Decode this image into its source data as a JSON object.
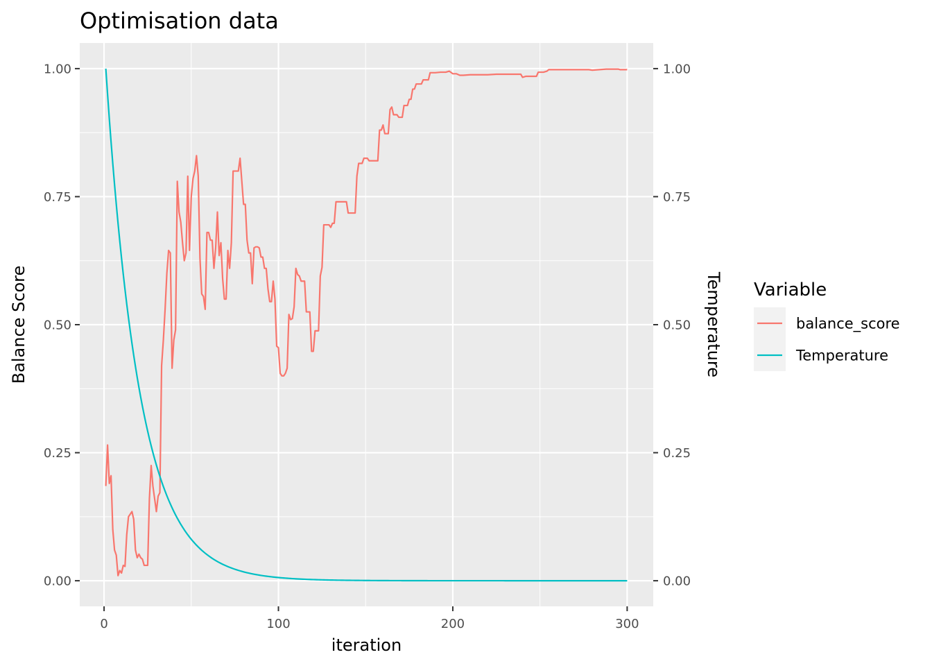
{
  "chart_data": {
    "type": "line",
    "title": "Optimisation data",
    "xlabel": "iteration",
    "ylabel": "Balance Score",
    "y2label": "Temperature",
    "xlim": [
      -13.95,
      314.95
    ],
    "ylim": [
      -0.05,
      1.05
    ],
    "x_ticks": [
      0,
      100,
      200,
      300
    ],
    "y_ticks": [
      0.0,
      0.25,
      0.5,
      0.75,
      1.0
    ],
    "y2_ticks": [
      0.0,
      0.25,
      0.5,
      0.75,
      1.0
    ],
    "grid": true,
    "legend_position": "right",
    "legend_title": "Variable",
    "series": [
      {
        "name": "balance_score",
        "color": "#F8766D",
        "points": [
          [
            1,
            0.185
          ],
          [
            2,
            0.265
          ],
          [
            3,
            0.19
          ],
          [
            4,
            0.205
          ],
          [
            5,
            0.1
          ],
          [
            6,
            0.06
          ],
          [
            7,
            0.05
          ],
          [
            8,
            0.01
          ],
          [
            9,
            0.02
          ],
          [
            10,
            0.015
          ],
          [
            11,
            0.03
          ],
          [
            12,
            0.028
          ],
          [
            13,
            0.09
          ],
          [
            14,
            0.125
          ],
          [
            15,
            0.13
          ],
          [
            16,
            0.135
          ],
          [
            17,
            0.12
          ],
          [
            18,
            0.06
          ],
          [
            19,
            0.045
          ],
          [
            20,
            0.052
          ],
          [
            21,
            0.045
          ],
          [
            22,
            0.042
          ],
          [
            23,
            0.03
          ],
          [
            24,
            0.03
          ],
          [
            25,
            0.03
          ],
          [
            26,
            0.16
          ],
          [
            27,
            0.225
          ],
          [
            28,
            0.185
          ],
          [
            29,
            0.16
          ],
          [
            30,
            0.135
          ],
          [
            31,
            0.165
          ],
          [
            32,
            0.172
          ],
          [
            33,
            0.42
          ],
          [
            34,
            0.47
          ],
          [
            35,
            0.53
          ],
          [
            36,
            0.6
          ],
          [
            37,
            0.645
          ],
          [
            38,
            0.64
          ],
          [
            39,
            0.415
          ],
          [
            40,
            0.47
          ],
          [
            41,
            0.49
          ],
          [
            42,
            0.78
          ],
          [
            43,
            0.72
          ],
          [
            44,
            0.7
          ],
          [
            45,
            0.66
          ],
          [
            46,
            0.625
          ],
          [
            47,
            0.64
          ],
          [
            48,
            0.79
          ],
          [
            49,
            0.645
          ],
          [
            50,
            0.75
          ],
          [
            51,
            0.785
          ],
          [
            52,
            0.8
          ],
          [
            53,
            0.83
          ],
          [
            54,
            0.79
          ],
          [
            55,
            0.63
          ],
          [
            56,
            0.56
          ],
          [
            57,
            0.555
          ],
          [
            58,
            0.53
          ],
          [
            59,
            0.68
          ],
          [
            60,
            0.68
          ],
          [
            61,
            0.665
          ],
          [
            62,
            0.665
          ],
          [
            63,
            0.61
          ],
          [
            64,
            0.65
          ],
          [
            65,
            0.72
          ],
          [
            66,
            0.635
          ],
          [
            67,
            0.66
          ],
          [
            68,
            0.59
          ],
          [
            69,
            0.55
          ],
          [
            70,
            0.55
          ],
          [
            71,
            0.645
          ],
          [
            72,
            0.61
          ],
          [
            73,
            0.66
          ],
          [
            74,
            0.8
          ],
          [
            75,
            0.8
          ],
          [
            76,
            0.8
          ],
          [
            77,
            0.8
          ],
          [
            78,
            0.825
          ],
          [
            79,
            0.78
          ],
          [
            80,
            0.735
          ],
          [
            81,
            0.735
          ],
          [
            82,
            0.665
          ],
          [
            83,
            0.64
          ],
          [
            84,
            0.64
          ],
          [
            85,
            0.58
          ],
          [
            86,
            0.65
          ],
          [
            87,
            0.652
          ],
          [
            88,
            0.652
          ],
          [
            89,
            0.65
          ],
          [
            90,
            0.632
          ],
          [
            91,
            0.632
          ],
          [
            92,
            0.61
          ],
          [
            93,
            0.61
          ],
          [
            94,
            0.57
          ],
          [
            95,
            0.545
          ],
          [
            96,
            0.545
          ],
          [
            97,
            0.585
          ],
          [
            98,
            0.55
          ],
          [
            99,
            0.458
          ],
          [
            100,
            0.455
          ],
          [
            101,
            0.405
          ],
          [
            102,
            0.4
          ],
          [
            103,
            0.4
          ],
          [
            104,
            0.405
          ],
          [
            105,
            0.415
          ],
          [
            106,
            0.52
          ],
          [
            107,
            0.51
          ],
          [
            108,
            0.512
          ],
          [
            109,
            0.535
          ],
          [
            110,
            0.61
          ],
          [
            111,
            0.598
          ],
          [
            112,
            0.595
          ],
          [
            113,
            0.585
          ],
          [
            114,
            0.585
          ],
          [
            115,
            0.585
          ],
          [
            116,
            0.525
          ],
          [
            117,
            0.525
          ],
          [
            118,
            0.525
          ],
          [
            119,
            0.448
          ],
          [
            120,
            0.448
          ],
          [
            121,
            0.488
          ],
          [
            122,
            0.488
          ],
          [
            123,
            0.488
          ],
          [
            124,
            0.595
          ],
          [
            125,
            0.612
          ],
          [
            126,
            0.695
          ],
          [
            127,
            0.695
          ],
          [
            128,
            0.695
          ],
          [
            129,
            0.695
          ],
          [
            130,
            0.69
          ],
          [
            131,
            0.698
          ],
          [
            132,
            0.698
          ],
          [
            133,
            0.74
          ],
          [
            134,
            0.74
          ],
          [
            135,
            0.74
          ],
          [
            136,
            0.74
          ],
          [
            137,
            0.74
          ],
          [
            138,
            0.74
          ],
          [
            139,
            0.74
          ],
          [
            140,
            0.718
          ],
          [
            141,
            0.718
          ],
          [
            142,
            0.718
          ],
          [
            143,
            0.718
          ],
          [
            144,
            0.718
          ],
          [
            145,
            0.79
          ],
          [
            146,
            0.815
          ],
          [
            147,
            0.815
          ],
          [
            148,
            0.815
          ],
          [
            149,
            0.825
          ],
          [
            150,
            0.825
          ],
          [
            151,
            0.825
          ],
          [
            152,
            0.82
          ],
          [
            153,
            0.82
          ],
          [
            154,
            0.82
          ],
          [
            155,
            0.82
          ],
          [
            156,
            0.82
          ],
          [
            157,
            0.82
          ],
          [
            158,
            0.88
          ],
          [
            159,
            0.88
          ],
          [
            160,
            0.89
          ],
          [
            161,
            0.873
          ],
          [
            162,
            0.873
          ],
          [
            163,
            0.873
          ],
          [
            164,
            0.92
          ],
          [
            165,
            0.925
          ],
          [
            166,
            0.91
          ],
          [
            167,
            0.91
          ],
          [
            168,
            0.91
          ],
          [
            169,
            0.905
          ],
          [
            170,
            0.905
          ],
          [
            171,
            0.905
          ],
          [
            172,
            0.928
          ],
          [
            173,
            0.928
          ],
          [
            174,
            0.928
          ],
          [
            175,
            0.94
          ],
          [
            176,
            0.94
          ],
          [
            177,
            0.96
          ],
          [
            178,
            0.96
          ],
          [
            179,
            0.97
          ],
          [
            180,
            0.97
          ],
          [
            181,
            0.97
          ],
          [
            182,
            0.97
          ],
          [
            183,
            0.978
          ],
          [
            184,
            0.978
          ],
          [
            185,
            0.978
          ],
          [
            186,
            0.978
          ],
          [
            187,
            0.992
          ],
          [
            188,
            0.992
          ],
          [
            189,
            0.992
          ],
          [
            190,
            0.992
          ],
          [
            193,
            0.993
          ],
          [
            196,
            0.993
          ],
          [
            198,
            0.995
          ],
          [
            200,
            0.99
          ],
          [
            202,
            0.99
          ],
          [
            204,
            0.987
          ],
          [
            206,
            0.987
          ],
          [
            210,
            0.988
          ],
          [
            215,
            0.988
          ],
          [
            220,
            0.988
          ],
          [
            225,
            0.989
          ],
          [
            230,
            0.989
          ],
          [
            235,
            0.989
          ],
          [
            239,
            0.989
          ],
          [
            240,
            0.983
          ],
          [
            242,
            0.985
          ],
          [
            246,
            0.985
          ],
          [
            248,
            0.985
          ],
          [
            249,
            0.993
          ],
          [
            252,
            0.993
          ],
          [
            254,
            0.995
          ],
          [
            255,
            0.998
          ],
          [
            258,
            0.998
          ],
          [
            262,
            0.998
          ],
          [
            270,
            0.998
          ],
          [
            278,
            0.998
          ],
          [
            280,
            0.997
          ],
          [
            284,
            0.998
          ],
          [
            288,
            0.999
          ],
          [
            292,
            0.999
          ],
          [
            295,
            0.999
          ],
          [
            296,
            0.998
          ],
          [
            300,
            0.998
          ]
        ]
      },
      {
        "name": "Temperature",
        "color": "#00BFC4",
        "function": "0.95^(iteration-1)",
        "x_range": [
          1,
          300
        ]
      }
    ]
  }
}
